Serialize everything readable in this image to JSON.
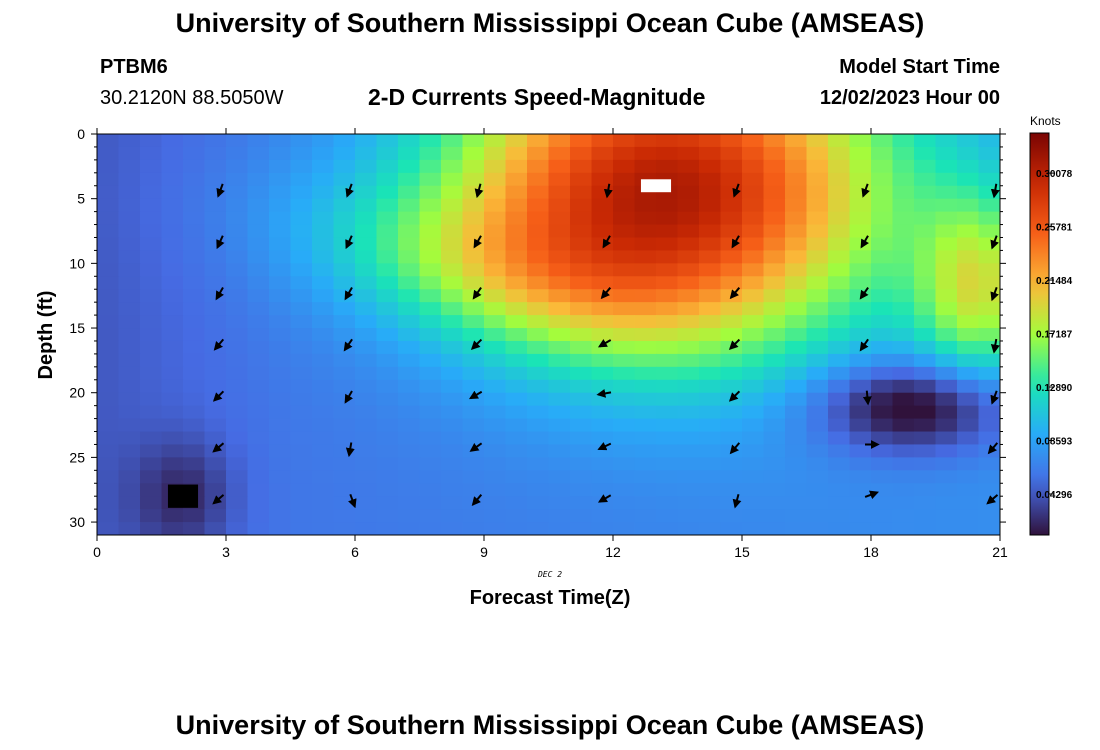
{
  "page": {
    "title": "University of Southern Mississippi Ocean Cube (AMSEAS)",
    "footer_title": "University of Southern Mississippi Ocean Cube (AMSEAS)",
    "station_id": "PTBM6",
    "station_coords": "30.2120N  88.5050W",
    "plot_subtitle": "2-D Currents Speed-Magnitude",
    "model_start_label": "Model Start Time",
    "model_start_value": "12/02/2023 Hour 00",
    "date_annotation": "DEC 2"
  },
  "chart_data": {
    "type": "heatmap",
    "title": "2-D Currents Speed-Magnitude",
    "xlabel": "Forecast Time(Z)",
    "ylabel": "Depth (ft)",
    "xlim": [
      0,
      21
    ],
    "ylim": [
      0,
      31
    ],
    "x_ticks": [
      0,
      3,
      6,
      9,
      12,
      15,
      18,
      21
    ],
    "y_ticks": [
      0,
      5,
      10,
      15,
      20,
      25,
      30
    ],
    "y_inverted": true,
    "colorbar": {
      "title": "Knots",
      "range": [
        0.01,
        0.333
      ],
      "tick_values": [
        0.30078,
        0.25781,
        0.21484,
        0.17187,
        0.1289,
        0.08593,
        0.04296
      ],
      "tick_labels": [
        "0.30078",
        "0.25781",
        "0.21484",
        "0.17187",
        "0.12890",
        "0.08593",
        "0.04296"
      ]
    },
    "speed_blobs": [
      {
        "x": 13.2,
        "y": 4.5,
        "sx": 3.6,
        "sy": 8.5,
        "amp": 0.24,
        "desc": "surface jet core"
      },
      {
        "x": 20.5,
        "y": 12,
        "sx": 1.0,
        "sy": 5,
        "amp": 0.1,
        "desc": "right edge high"
      },
      {
        "x": 19,
        "y": 21,
        "sx": 1.6,
        "sy": 2.5,
        "amp": -0.08,
        "desc": "slack pocket"
      },
      {
        "x": 2.0,
        "y": 28,
        "sx": 0.8,
        "sy": 3,
        "amp": -0.03,
        "desc": "bottom minimum"
      }
    ],
    "missing_cells": [
      {
        "x": 2.0,
        "y": 28.0,
        "color": "#000000"
      },
      {
        "x": 13.0,
        "y": 4.0,
        "color": "#ffffff"
      }
    ],
    "vector_times": [
      3,
      6,
      9,
      12,
      15,
      18,
      21
    ],
    "vector_depths": [
      4,
      8,
      12,
      16,
      20,
      24,
      28
    ],
    "vector_directions_deg": [
      [
        200,
        200,
        195,
        190,
        200,
        200,
        190
      ],
      [
        205,
        205,
        210,
        210,
        210,
        210,
        200
      ],
      [
        210,
        210,
        215,
        220,
        220,
        215,
        200
      ],
      [
        220,
        215,
        225,
        240,
        225,
        215,
        190
      ],
      [
        225,
        210,
        240,
        260,
        225,
        175,
        200
      ],
      [
        230,
        190,
        235,
        245,
        220,
        90,
        220
      ],
      [
        230,
        160,
        220,
        240,
        195,
        70,
        230
      ]
    ]
  }
}
